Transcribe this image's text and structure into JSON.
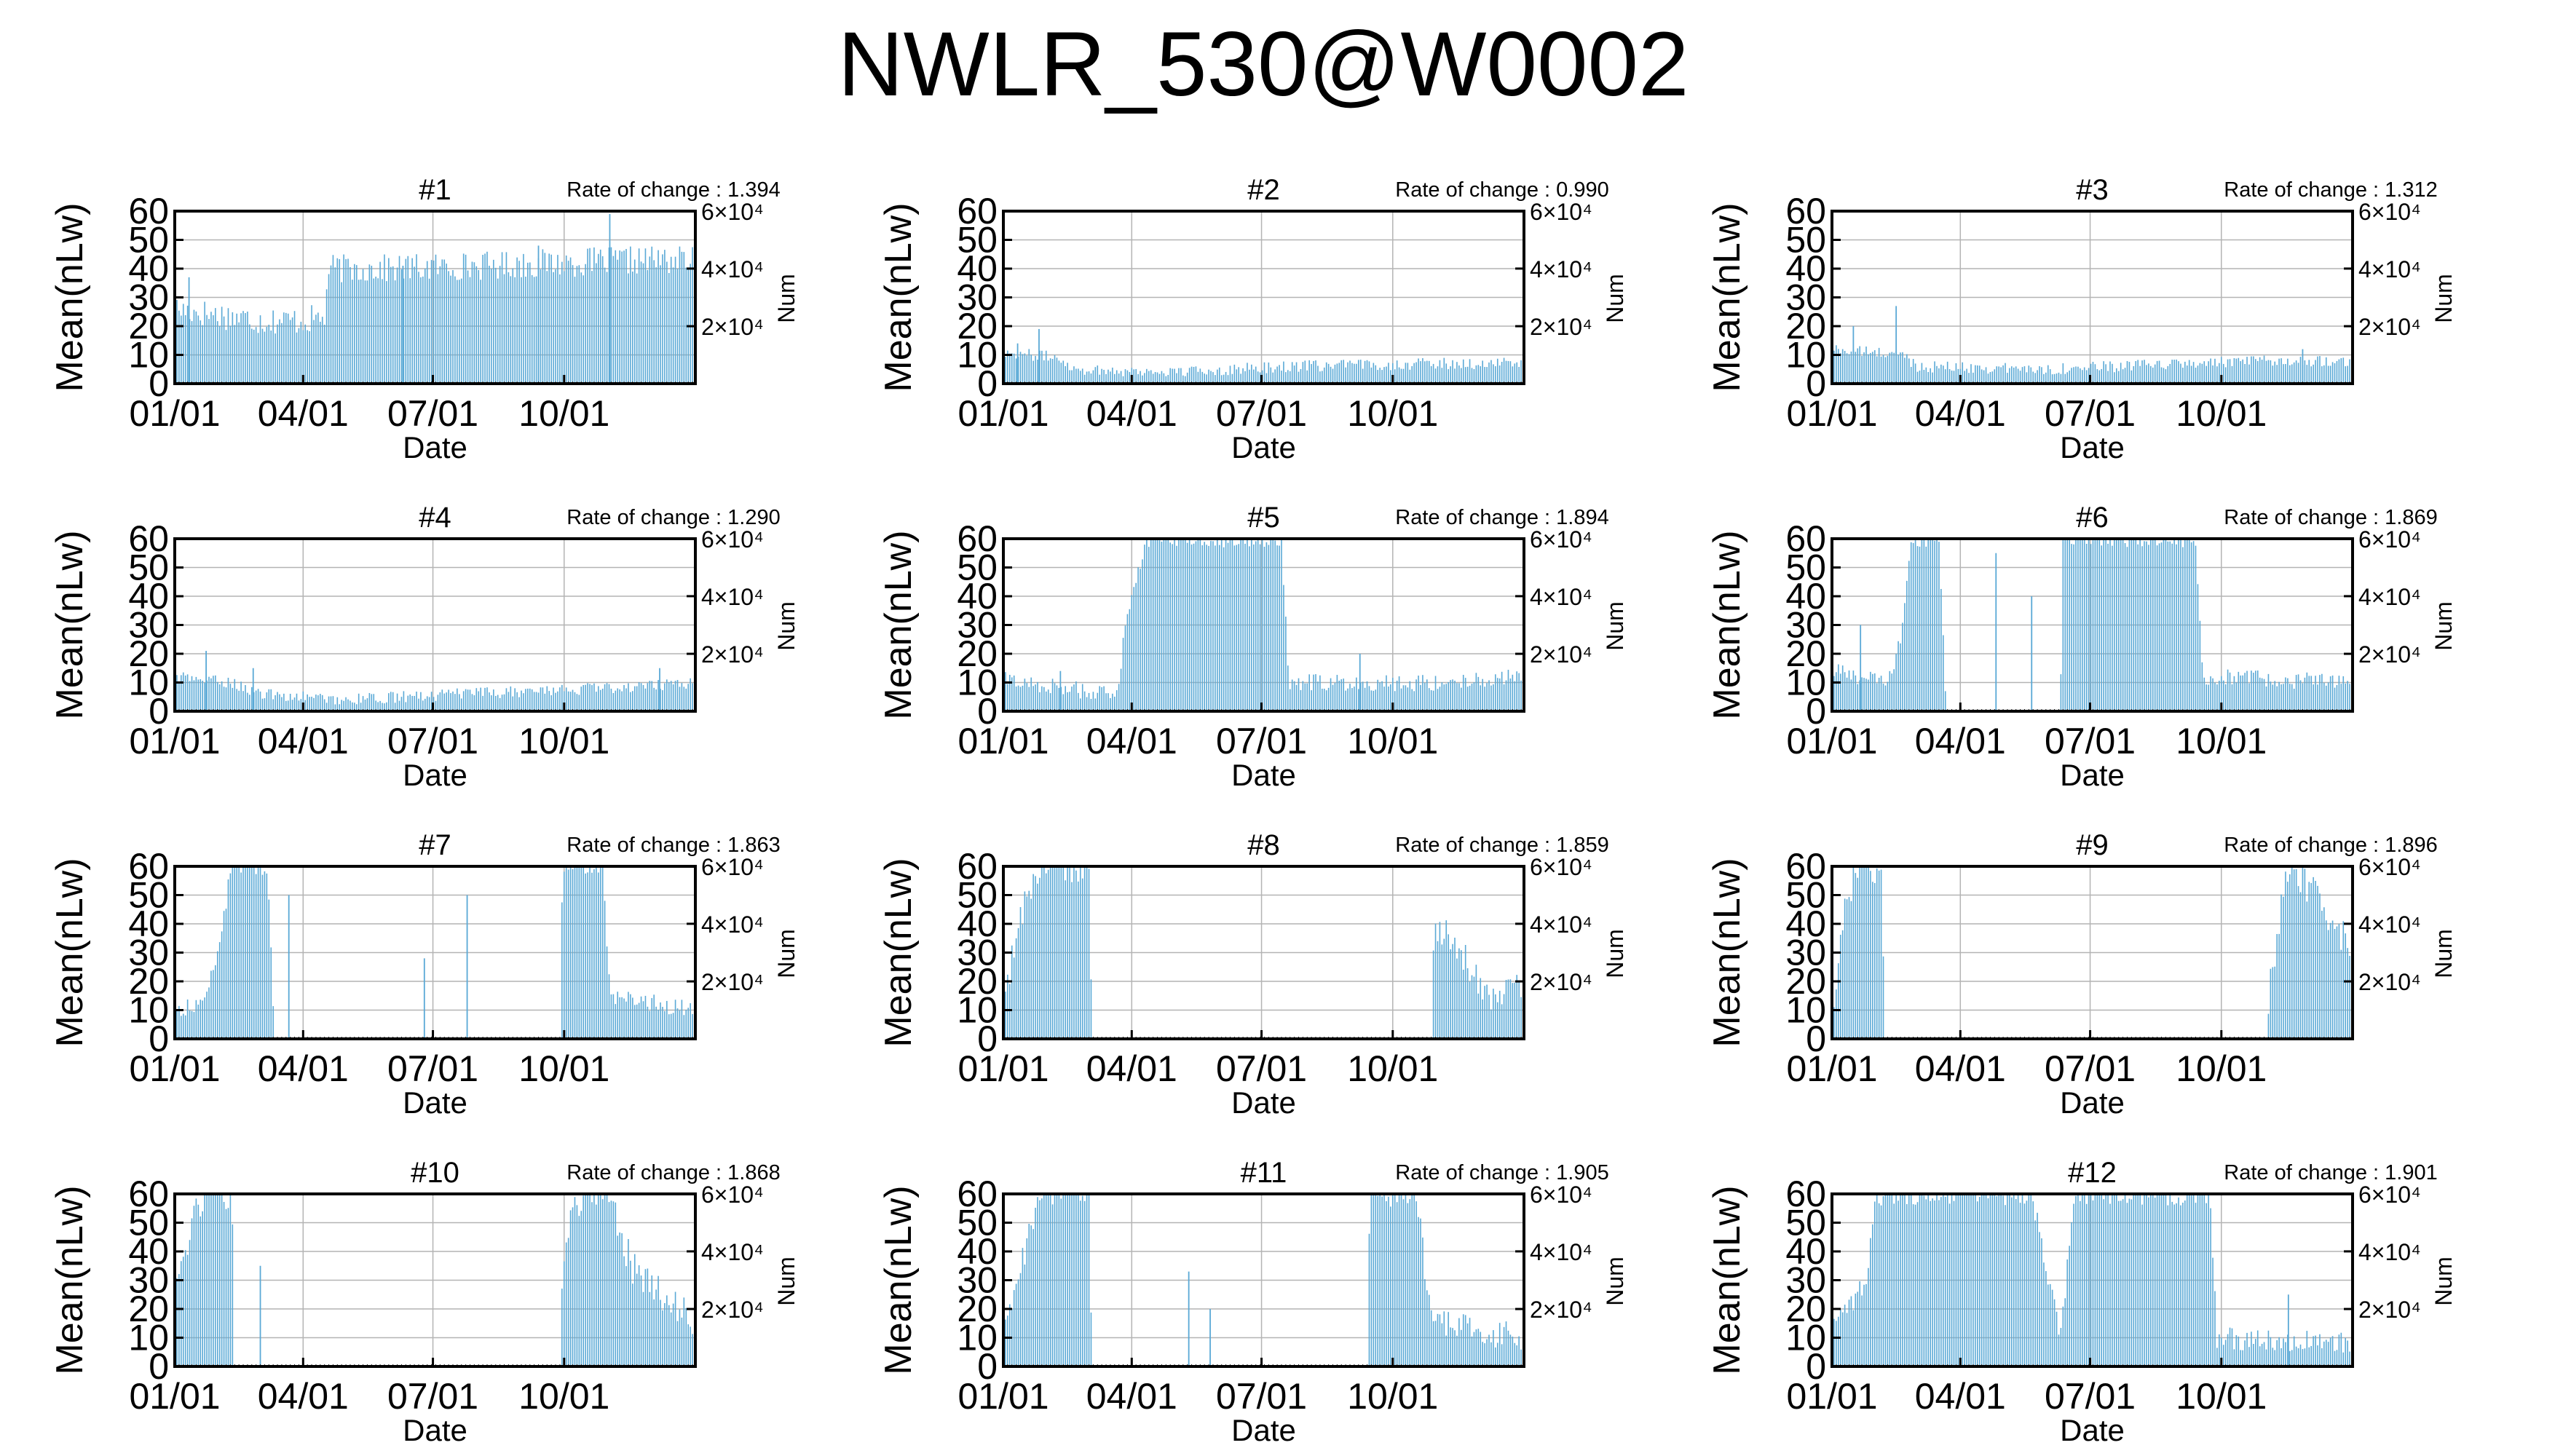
{
  "title": "NWLR_530@W0002",
  "colors": {
    "bars": "#5aa9d6",
    "axis": "#000000",
    "grid": "#b4b4b4",
    "background": "#ffffff"
  },
  "chart_data": [
    {
      "type": "bar",
      "panel": "#1",
      "rate_label": "Rate of change : 1.394",
      "xlabel": "Date",
      "ylabel": "Mean(nLw)",
      "y2label": "Num",
      "ylim": [
        0,
        60
      ],
      "yticks": [
        "0",
        "10",
        "20",
        "30",
        "40",
        "50",
        "60"
      ],
      "y2ticks": [
        "2×10⁴",
        "4×10⁴",
        "6×10⁴"
      ],
      "xticks": [
        "01/01",
        "04/01",
        "07/01",
        "10/01"
      ],
      "grid": true,
      "series": [
        {
          "profile": [
            [
              0,
              26
            ],
            [
              30,
              24
            ],
            [
              60,
              22
            ],
            [
              90,
              22
            ],
            [
              105,
              23
            ],
            [
              108,
              40
            ],
            [
              150,
              40
            ],
            [
              210,
              41
            ],
            [
              270,
              42
            ],
            [
              330,
              43
            ],
            [
              365,
              43
            ]
          ],
          "noise": 5,
          "spikes": [
            [
              10,
              37
            ],
            [
              160,
              41
            ],
            [
              255,
              48
            ],
            [
              305,
              59
            ]
          ]
        }
      ]
    },
    {
      "type": "bar",
      "panel": "#2",
      "rate_label": "Rate of change : 0.990",
      "xlabel": "Date",
      "ylabel": "Mean(nLw)",
      "y2label": "Num",
      "ylim": [
        0,
        60
      ],
      "yticks": [
        "0",
        "10",
        "20",
        "30",
        "40",
        "50",
        "60"
      ],
      "y2ticks": [
        "2×10⁴",
        "4×10⁴",
        "6×10⁴"
      ],
      "xticks": [
        "01/01",
        "04/01",
        "07/01",
        "10/01"
      ],
      "grid": true,
      "series": [
        {
          "profile": [
            [
              0,
              11
            ],
            [
              40,
              9
            ],
            [
              50,
              5
            ],
            [
              120,
              4
            ],
            [
              200,
              6
            ],
            [
              300,
              7
            ],
            [
              365,
              7
            ]
          ],
          "noise": 2,
          "spikes": [
            [
              10,
              14
            ],
            [
              25,
              19
            ]
          ]
        }
      ]
    },
    {
      "type": "bar",
      "panel": "#3",
      "rate_label": "Rate of change : 1.312",
      "xlabel": "Date",
      "ylabel": "Mean(nLw)",
      "y2label": "Num",
      "ylim": [
        0,
        60
      ],
      "yticks": [
        "0",
        "10",
        "20",
        "30",
        "40",
        "50",
        "60"
      ],
      "y2ticks": [
        "2×10⁴",
        "4×10⁴",
        "6×10⁴"
      ],
      "xticks": [
        "01/01",
        "04/01",
        "07/01",
        "10/01"
      ],
      "grid": true,
      "series": [
        {
          "profile": [
            [
              0,
              12
            ],
            [
              50,
              10
            ],
            [
              60,
              6
            ],
            [
              150,
              5
            ],
            [
              250,
              7
            ],
            [
              320,
              8
            ],
            [
              365,
              8
            ]
          ],
          "noise": 2,
          "spikes": [
            [
              15,
              20
            ],
            [
              45,
              27
            ],
            [
              330,
              12
            ]
          ]
        }
      ]
    },
    {
      "type": "bar",
      "panel": "#4",
      "rate_label": "Rate of change : 1.290",
      "xlabel": "Date",
      "ylabel": "Mean(nLw)",
      "y2label": "Num",
      "ylim": [
        0,
        60
      ],
      "yticks": [
        "0",
        "10",
        "20",
        "30",
        "40",
        "50",
        "60"
      ],
      "y2ticks": [
        "2×10⁴",
        "4×10⁴",
        "6×10⁴"
      ],
      "xticks": [
        "01/01",
        "04/01",
        "07/01",
        "10/01"
      ],
      "grid": true,
      "series": [
        {
          "profile": [
            [
              0,
              12
            ],
            [
              40,
              10
            ],
            [
              60,
              6
            ],
            [
              120,
              4
            ],
            [
              200,
              6
            ],
            [
              300,
              8
            ],
            [
              365,
              10
            ]
          ],
          "noise": 2,
          "spikes": [
            [
              22,
              21
            ],
            [
              55,
              15
            ],
            [
              340,
              15
            ]
          ]
        }
      ]
    },
    {
      "type": "bar",
      "panel": "#5",
      "rate_label": "Rate of change : 1.894",
      "xlabel": "Date",
      "ylabel": "Mean(nLw)",
      "y2label": "Num",
      "ylim": [
        0,
        60
      ],
      "yticks": [
        "0",
        "10",
        "20",
        "30",
        "40",
        "50",
        "60"
      ],
      "y2ticks": [
        "2×10⁴",
        "4×10⁴",
        "6×10⁴"
      ],
      "xticks": [
        "01/01",
        "04/01",
        "07/01",
        "10/01"
      ],
      "grid": true,
      "series": [
        {
          "profile": [
            [
              0,
              11
            ],
            [
              60,
              7
            ],
            [
              80,
              5
            ],
            [
              85,
              30
            ],
            [
              100,
              60
            ],
            [
              195,
              60
            ],
            [
              200,
              10
            ],
            [
              300,
              10
            ],
            [
              365,
              12
            ]
          ],
          "noise": 3,
          "spikes": [
            [
              40,
              14
            ],
            [
              250,
              20
            ]
          ]
        }
      ]
    },
    {
      "type": "bar",
      "panel": "#6",
      "rate_label": "Rate of change : 1.869",
      "xlabel": "Date",
      "ylabel": "Mean(nLw)",
      "y2label": "Num",
      "ylim": [
        0,
        60
      ],
      "yticks": [
        "0",
        "10",
        "20",
        "30",
        "40",
        "50",
        "60"
      ],
      "y2ticks": [
        "2×10⁴",
        "4×10⁴",
        "6×10⁴"
      ],
      "xticks": [
        "01/01",
        "04/01",
        "07/01",
        "10/01"
      ],
      "grid": true,
      "series": [
        {
          "profile": [
            [
              0,
              14
            ],
            [
              40,
              10
            ],
            [
              50,
              30
            ],
            [
              55,
              60
            ],
            [
              75,
              60
            ],
            [
              80,
              0
            ],
            [
              160,
              0
            ],
            [
              162,
              60
            ],
            [
              255,
              60
            ],
            [
              260,
              12
            ],
            [
              365,
              10
            ]
          ],
          "noise": 3,
          "spikes": [
            [
              20,
              30
            ],
            [
              115,
              55
            ],
            [
              140,
              40
            ]
          ]
        }
      ]
    },
    {
      "type": "bar",
      "panel": "#7",
      "rate_label": "Rate of change : 1.863",
      "xlabel": "Date",
      "ylabel": "Mean(nLw)",
      "y2label": "Num",
      "ylim": [
        0,
        60
      ],
      "yticks": [
        "0",
        "10",
        "20",
        "30",
        "40",
        "50",
        "60"
      ],
      "y2ticks": [
        "2×10⁴",
        "4×10⁴",
        "6×10⁴"
      ],
      "xticks": [
        "01/01",
        "04/01",
        "07/01",
        "10/01"
      ],
      "grid": true,
      "series": [
        {
          "profile": [
            [
              0,
              10
            ],
            [
              20,
              12
            ],
            [
              30,
              30
            ],
            [
              40,
              60
            ],
            [
              65,
              60
            ],
            [
              70,
              0
            ],
            [
              270,
              0
            ],
            [
              272,
              60
            ],
            [
              300,
              60
            ],
            [
              305,
              15
            ],
            [
              365,
              10
            ]
          ],
          "noise": 3,
          "spikes": [
            [
              80,
              50
            ],
            [
              175,
              28
            ],
            [
              205,
              50
            ]
          ]
        }
      ]
    },
    {
      "type": "bar",
      "panel": "#8",
      "rate_label": "Rate of change : 1.859",
      "xlabel": "Date",
      "ylabel": "Mean(nLw)",
      "y2label": "Num",
      "ylim": [
        0,
        60
      ],
      "yticks": [
        "0",
        "10",
        "20",
        "30",
        "40",
        "50",
        "60"
      ],
      "y2ticks": [
        "2×10⁴",
        "4×10⁴",
        "6×10⁴"
      ],
      "xticks": [
        "01/01",
        "04/01",
        "07/01",
        "10/01"
      ],
      "grid": true,
      "series": [
        {
          "profile": [
            [
              0,
              8
            ],
            [
              10,
              40
            ],
            [
              25,
              60
            ],
            [
              60,
              60
            ],
            [
              62,
              0
            ],
            [
              300,
              0
            ],
            [
              302,
              40
            ],
            [
              320,
              30
            ],
            [
              340,
              15
            ],
            [
              365,
              20
            ]
          ],
          "noise": 6,
          "spikes": []
        }
      ]
    },
    {
      "type": "bar",
      "panel": "#9",
      "rate_label": "Rate of change : 1.896",
      "xlabel": "Date",
      "ylabel": "Mean(nLw)",
      "y2label": "Num",
      "ylim": [
        0,
        60
      ],
      "yticks": [
        "0",
        "10",
        "20",
        "30",
        "40",
        "50",
        "60"
      ],
      "y2ticks": [
        "2×10⁴",
        "4×10⁴",
        "6×10⁴"
      ],
      "xticks": [
        "01/01",
        "04/01",
        "07/01",
        "10/01"
      ],
      "grid": true,
      "series": [
        {
          "profile": [
            [
              0,
              10
            ],
            [
              10,
              50
            ],
            [
              20,
              60
            ],
            [
              35,
              60
            ],
            [
              37,
              0
            ],
            [
              305,
              0
            ],
            [
              307,
              20
            ],
            [
              320,
              60
            ],
            [
              340,
              50
            ],
            [
              365,
              30
            ]
          ],
          "noise": 6,
          "spikes": []
        }
      ]
    },
    {
      "type": "bar",
      "panel": "#10",
      "rate_label": "Rate of change : 1.868",
      "xlabel": "Date",
      "ylabel": "Mean(nLw)",
      "y2label": "Num",
      "ylim": [
        0,
        60
      ],
      "yticks": [
        "0",
        "10",
        "20",
        "30",
        "40",
        "50",
        "60"
      ],
      "y2ticks": [
        "2×10⁴",
        "4×10⁴",
        "6×10⁴"
      ],
      "xticks": [
        "01/01",
        "04/01",
        "07/01",
        "10/01"
      ],
      "grid": true,
      "series": [
        {
          "profile": [
            [
              0,
              30
            ],
            [
              20,
              60
            ],
            [
              40,
              60
            ],
            [
              42,
              0
            ],
            [
              270,
              0
            ],
            [
              272,
              40
            ],
            [
              285,
              60
            ],
            [
              305,
              60
            ],
            [
              320,
              35
            ],
            [
              365,
              15
            ]
          ],
          "noise": 6,
          "spikes": [
            [
              60,
              35
            ]
          ]
        }
      ]
    },
    {
      "type": "bar",
      "panel": "#11",
      "rate_label": "Rate of change : 1.905",
      "xlabel": "Date",
      "ylabel": "Mean(nLw)",
      "y2label": "Num",
      "ylim": [
        0,
        60
      ],
      "yticks": [
        "0",
        "10",
        "20",
        "30",
        "40",
        "50",
        "60"
      ],
      "y2ticks": [
        "2×10⁴",
        "4×10⁴",
        "6×10⁴"
      ],
      "xticks": [
        "01/01",
        "04/01",
        "07/01",
        "10/01"
      ],
      "grid": true,
      "series": [
        {
          "profile": [
            [
              0,
              12
            ],
            [
              15,
              40
            ],
            [
              25,
              60
            ],
            [
              60,
              60
            ],
            [
              62,
              0
            ],
            [
              255,
              0
            ],
            [
              257,
              60
            ],
            [
              290,
              60
            ],
            [
              300,
              15
            ],
            [
              365,
              10
            ]
          ],
          "noise": 5,
          "spikes": [
            [
              130,
              33
            ],
            [
              145,
              20
            ]
          ]
        }
      ]
    },
    {
      "type": "bar",
      "panel": "#12",
      "rate_label": "Rate of change : 1.901",
      "xlabel": "Date",
      "ylabel": "Mean(nLw)",
      "y2label": "Num",
      "ylim": [
        0,
        60
      ],
      "yticks": [
        "0",
        "10",
        "20",
        "30",
        "40",
        "50",
        "60"
      ],
      "y2ticks": [
        "2×10⁴",
        "4×10⁴",
        "6×10⁴"
      ],
      "xticks": [
        "01/01",
        "04/01",
        "07/01",
        "10/01"
      ],
      "grid": true,
      "series": [
        {
          "profile": [
            [
              0,
              12
            ],
            [
              25,
              30
            ],
            [
              30,
              60
            ],
            [
              140,
              60
            ],
            [
              160,
              10
            ],
            [
              170,
              60
            ],
            [
              265,
              60
            ],
            [
              270,
              10
            ],
            [
              365,
              8
            ]
          ],
          "noise": 4,
          "spikes": [
            [
              320,
              25
            ]
          ]
        }
      ]
    }
  ]
}
